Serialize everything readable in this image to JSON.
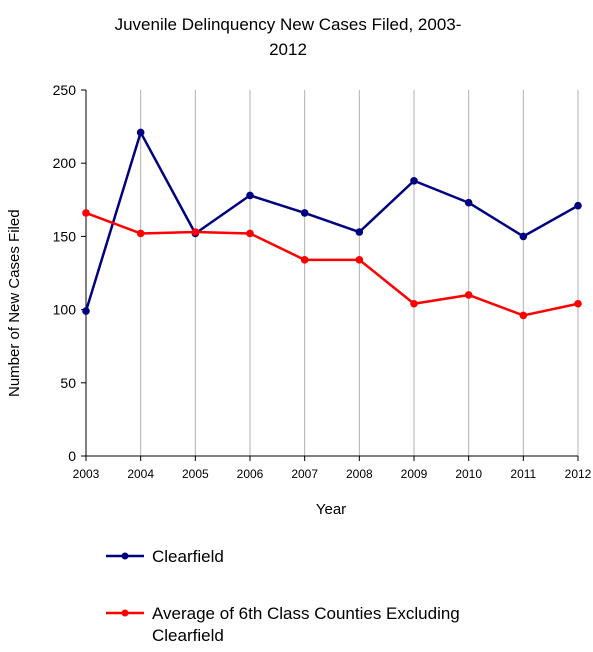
{
  "chart_data": {
    "type": "line",
    "title_line1": "Juvenile Delinquency New Cases Filed, 2003-",
    "title_line2": "2012",
    "xlabel": "Year",
    "ylabel": "Number of New Cases Filed",
    "x": [
      "2003",
      "2004",
      "2005",
      "2006",
      "2007",
      "2008",
      "2009",
      "2010",
      "2011",
      "2012"
    ],
    "ylim": [
      0,
      250
    ],
    "yticks": [
      "0",
      "50",
      "100",
      "150",
      "200",
      "250"
    ],
    "grid": "vertical",
    "legend_position": "bottom",
    "series": [
      {
        "name": "Clearfield",
        "color": "#000080",
        "values": [
          99,
          221,
          152,
          178,
          166,
          153,
          188,
          173,
          150,
          171
        ]
      },
      {
        "name_line1": "Average of 6th Class Counties Excluding",
        "name_line2": "Clearfield",
        "color": "#ff0000",
        "values": [
          166,
          152,
          153,
          152,
          134,
          134,
          104,
          110,
          96,
          104
        ]
      }
    ]
  }
}
